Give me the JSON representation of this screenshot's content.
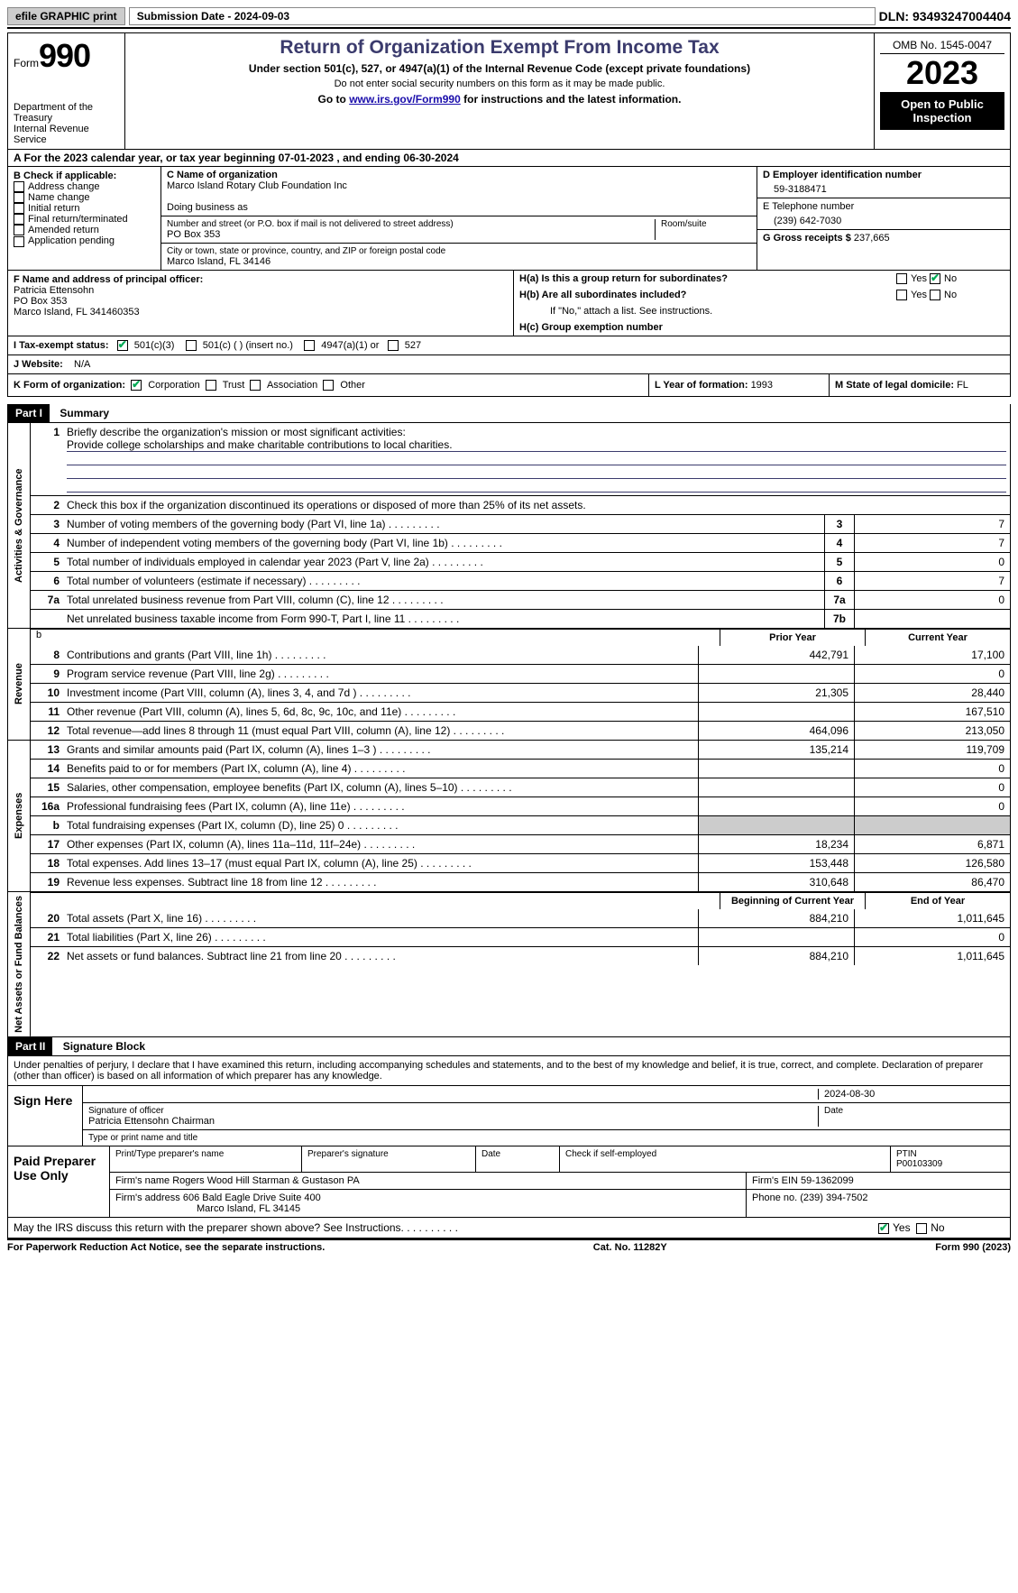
{
  "topbar": {
    "efile": "efile GRAPHIC print",
    "subdate_label": "Submission Date - ",
    "subdate": "2024-09-03",
    "dln_label": "DLN: ",
    "dln": "93493247004404"
  },
  "header": {
    "form_word": "Form",
    "form_no": "990",
    "dept": "Department of the Treasury\nInternal Revenue Service",
    "title": "Return of Organization Exempt From Income Tax",
    "subtitle": "Under section 501(c), 527, or 4947(a)(1) of the Internal Revenue Code (except private foundations)",
    "note": "Do not enter social security numbers on this form as it may be made public.",
    "goto_pre": "Go to ",
    "goto_link": "www.irs.gov/Form990",
    "goto_post": " for instructions and the latest information.",
    "omb": "OMB No. 1545-0047",
    "year": "2023",
    "open": "Open to Public Inspection"
  },
  "rowA": {
    "text_pre": "A For the 2023 calendar year, or tax year beginning ",
    "begin": "07-01-2023",
    "mid": " , and ending ",
    "end": "06-30-2024"
  },
  "boxB": {
    "label": "B Check if applicable:",
    "items": [
      "Address change",
      "Name change",
      "Initial return",
      "Final return/terminated",
      "Amended return",
      "Application pending"
    ]
  },
  "boxC": {
    "name_label": "C Name of organization",
    "name": "Marco Island Rotary Club Foundation Inc",
    "dba_label": "Doing business as",
    "dba": "",
    "street_label": "Number and street (or P.O. box if mail is not delivered to street address)",
    "room_label": "Room/suite",
    "street": "PO Box 353",
    "city_label": "City or town, state or province, country, and ZIP or foreign postal code",
    "city": "Marco Island, FL  34146"
  },
  "boxD": {
    "label": "D Employer identification number",
    "value": "59-3188471"
  },
  "boxE": {
    "label": "E Telephone number",
    "value": "(239) 642-7030"
  },
  "boxG": {
    "label": "G Gross receipts $ ",
    "value": "237,665"
  },
  "boxF": {
    "label": "F  Name and address of principal officer:",
    "name": "Patricia Ettensohn",
    "addr1": "PO Box 353",
    "addr2": "Marco Island, FL  341460353"
  },
  "boxH": {
    "a_label": "H(a)  Is this a group return for subordinates?",
    "a_yes": "Yes",
    "a_no": "No",
    "b_label": "H(b)  Are all subordinates included?",
    "b_note": "If \"No,\" attach a list. See instructions.",
    "c_label": "H(c)  Group exemption number "
  },
  "boxI": {
    "label": "I  Tax-exempt status:",
    "opt1": "501(c)(3)",
    "opt2": "501(c) (   ) (insert no.)",
    "opt3": "4947(a)(1) or",
    "opt4": "527"
  },
  "boxJ": {
    "label": "J  Website: ",
    "value": "N/A"
  },
  "boxK": {
    "label": "K Form of organization:",
    "corp": "Corporation",
    "trust": "Trust",
    "assoc": "Association",
    "other": "Other"
  },
  "boxL": {
    "label": "L Year of formation: ",
    "value": "1993"
  },
  "boxM": {
    "label": "M State of legal domicile: ",
    "value": "FL"
  },
  "parts": {
    "p1": "Part I",
    "summary": "Summary",
    "p2": "Part II",
    "sig": "Signature Block"
  },
  "summary": {
    "l1_label": "Briefly describe the organization's mission or most significant activities:",
    "l1_text": "Provide college scholarships and make charitable contributions to local charities.",
    "l2_label": "Check this box      if the organization discontinued its operations or disposed of more than 25% of its net assets.",
    "l3_label": "Number of voting members of the governing body (Part VI, line 1a)",
    "l4_label": "Number of independent voting members of the governing body (Part VI, line 1b)",
    "l5_label": "Total number of individuals employed in calendar year 2023 (Part V, line 2a)",
    "l6_label": "Total number of volunteers (estimate if necessary)",
    "l7a_label": "Total unrelated business revenue from Part VIII, column (C), line 12",
    "l7b_label": "Net unrelated business taxable income from Form 990-T, Part I, line 11",
    "gov_values": {
      "l3": "7",
      "l4": "7",
      "l5": "0",
      "l6": "7",
      "l7a": "0",
      "l7b": ""
    },
    "col_prior": "Prior Year",
    "col_current": "Current Year",
    "col_beg": "Beginning of Current Year",
    "col_end": "End of Year",
    "vlabels": {
      "gov": "Activities & Governance",
      "rev": "Revenue",
      "exp": "Expenses",
      "net": "Net Assets or Fund Balances"
    },
    "rev": [
      {
        "n": "8",
        "t": "Contributions and grants (Part VIII, line 1h)",
        "p": "442,791",
        "c": "17,100"
      },
      {
        "n": "9",
        "t": "Program service revenue (Part VIII, line 2g)",
        "p": "",
        "c": "0"
      },
      {
        "n": "10",
        "t": "Investment income (Part VIII, column (A), lines 3, 4, and 7d )",
        "p": "21,305",
        "c": "28,440"
      },
      {
        "n": "11",
        "t": "Other revenue (Part VIII, column (A), lines 5, 6d, 8c, 9c, 10c, and 11e)",
        "p": "",
        "c": "167,510"
      },
      {
        "n": "12",
        "t": "Total revenue—add lines 8 through 11 (must equal Part VIII, column (A), line 12)",
        "p": "464,096",
        "c": "213,050"
      }
    ],
    "exp": [
      {
        "n": "13",
        "t": "Grants and similar amounts paid (Part IX, column (A), lines 1–3 )",
        "p": "135,214",
        "c": "119,709"
      },
      {
        "n": "14",
        "t": "Benefits paid to or for members (Part IX, column (A), line 4)",
        "p": "",
        "c": "0"
      },
      {
        "n": "15",
        "t": "Salaries, other compensation, employee benefits (Part IX, column (A), lines 5–10)",
        "p": "",
        "c": "0"
      },
      {
        "n": "16a",
        "t": "Professional fundraising fees (Part IX, column (A), line 11e)",
        "p": "",
        "c": "0"
      },
      {
        "n": "b",
        "t": "Total fundraising expenses (Part IX, column (D), line 25) 0",
        "p": "GREY",
        "c": "GREY"
      },
      {
        "n": "17",
        "t": "Other expenses (Part IX, column (A), lines 11a–11d, 11f–24e)",
        "p": "18,234",
        "c": "6,871"
      },
      {
        "n": "18",
        "t": "Total expenses. Add lines 13–17 (must equal Part IX, column (A), line 25)",
        "p": "153,448",
        "c": "126,580"
      },
      {
        "n": "19",
        "t": "Revenue less expenses. Subtract line 18 from line 12",
        "p": "310,648",
        "c": "86,470"
      }
    ],
    "net": [
      {
        "n": "20",
        "t": "Total assets (Part X, line 16)",
        "p": "884,210",
        "c": "1,011,645"
      },
      {
        "n": "21",
        "t": "Total liabilities (Part X, line 26)",
        "p": "",
        "c": "0"
      },
      {
        "n": "22",
        "t": "Net assets or fund balances. Subtract line 21 from line 20",
        "p": "884,210",
        "c": "1,011,645"
      }
    ]
  },
  "sig": {
    "perjury": "Under penalties of perjury, I declare that I have examined this return, including accompanying schedules and statements, and to the best of my knowledge and belief, it is true, correct, and complete. Declaration of preparer (other than officer) is based on all information of which preparer has any knowledge.",
    "sign_here": "Sign Here",
    "sig_officer": "Signature of officer",
    "date_label": "Date",
    "sig_date": "2024-08-30",
    "officer_name": "Patricia Ettensohn Chairman",
    "type_label": "Type or print name and title",
    "paid": "Paid Preparer Use Only",
    "prep_name_label": "Print/Type preparer's name",
    "prep_sig_label": "Preparer's signature",
    "check_self": "Check        if self-employed",
    "ptin_label": "PTIN",
    "ptin": "P00103309",
    "firm_name_label": "Firm's name    ",
    "firm_name": "Rogers Wood Hill Starman & Gustason PA",
    "firm_ein_label": "Firm's EIN  ",
    "firm_ein": "59-1362099",
    "firm_addr_label": "Firm's address ",
    "firm_addr1": "606 Bald Eagle Drive Suite 400",
    "firm_addr2": "Marco Island, FL  34145",
    "phone_label": "Phone no. ",
    "phone": "(239) 394-7502",
    "discuss": "May the IRS discuss this return with the preparer shown above? See Instructions.",
    "d_yes": "Yes",
    "d_no": "No",
    "footer_left": "For Paperwork Reduction Act Notice, see the separate instructions.",
    "footer_mid": "Cat. No. 11282Y",
    "footer_right": "Form 990 (2023)"
  }
}
